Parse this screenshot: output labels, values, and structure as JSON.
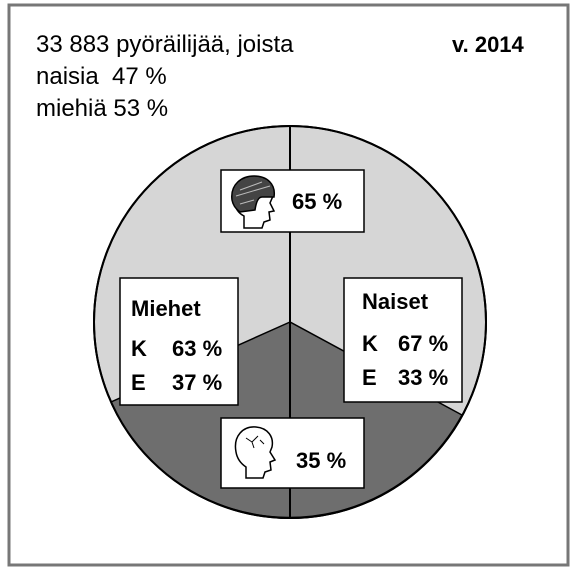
{
  "header": {
    "lines": [
      "33 883 pyöräilijää, joista",
      "naisia  47 %",
      "miehiä 53 %"
    ],
    "year": "v. 2014"
  },
  "helmet": {
    "value": "65 %"
  },
  "no_helmet": {
    "value": "35 %"
  },
  "men": {
    "title": "Miehet",
    "rows": [
      {
        "label": "K",
        "value": "63 %"
      },
      {
        "label": "E",
        "value": "37 %"
      }
    ]
  },
  "women": {
    "title": "Naiset",
    "rows": [
      {
        "label": "K",
        "value": "67 %"
      },
      {
        "label": "E",
        "value": "33 %"
      }
    ]
  }
}
